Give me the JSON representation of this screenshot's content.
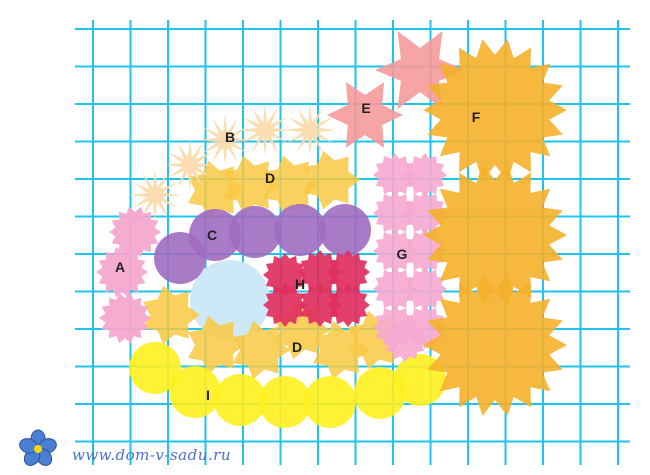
{
  "labels": {
    "A": "A",
    "B": "B",
    "C": "C",
    "D": "D",
    "E": "E",
    "F": "F",
    "G": "G",
    "H": "H",
    "I": "I"
  },
  "watermark": "www.dom-v-sadu.ru",
  "logo_icon": "forget-me-not-flower-icon",
  "colors": {
    "grid": "#1ec3ee",
    "A": "#f6a6cf",
    "B": "#fcd9a8",
    "C": "#a06bbf",
    "D": "#f9c843",
    "E": "#f59a9a",
    "F": "#f5b02a",
    "G": "#f5a9d0",
    "H": "#e02f5f",
    "I": "#fff01e",
    "pond": "#cde9f7"
  }
}
